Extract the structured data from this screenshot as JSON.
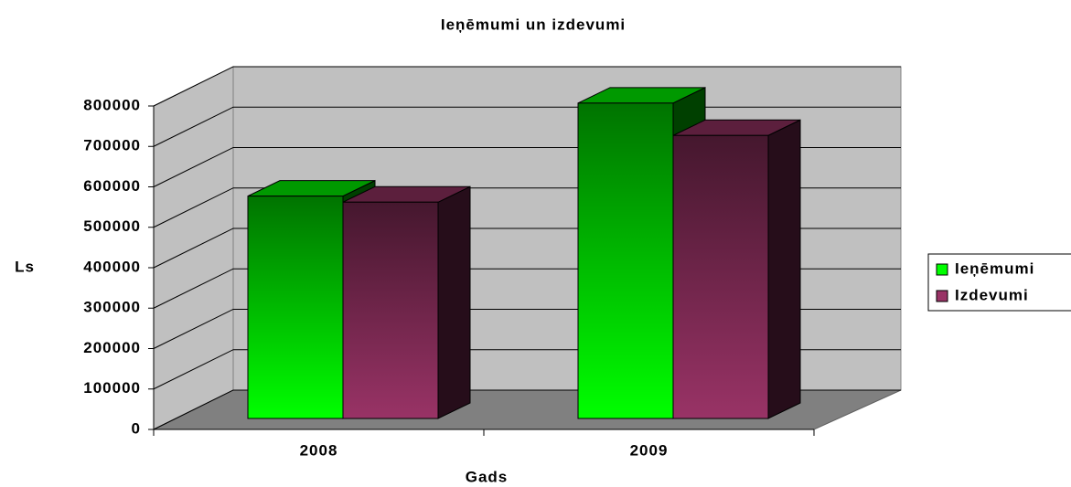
{
  "chart_data": {
    "type": "bar3d",
    "title": "Ieņēmumi un izdevumi",
    "x_label": "Gads",
    "y_label": "Ls",
    "categories": [
      "2008",
      "2009"
    ],
    "series": [
      {
        "name": "Ieņēmumi",
        "color": "#00ff00",
        "values": [
          550000,
          780000
        ]
      },
      {
        "name": "Izdevumi",
        "color": "#993366",
        "values": [
          535000,
          700000
        ]
      }
    ],
    "ylim": [
      0,
      800000
    ],
    "yticks": [
      0,
      100000,
      200000,
      300000,
      400000,
      500000,
      600000,
      700000,
      800000
    ],
    "grid": true,
    "legend": "right"
  }
}
